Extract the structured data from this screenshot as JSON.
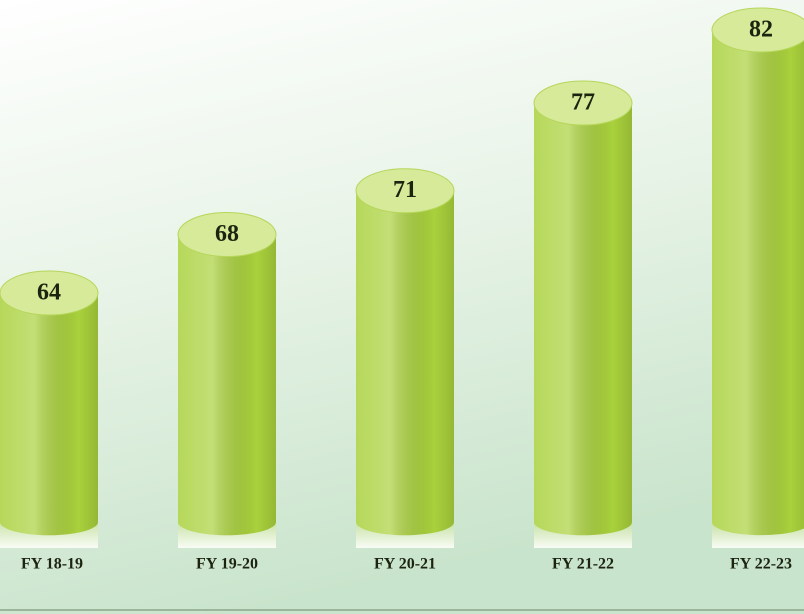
{
  "chart_data": {
    "type": "bar",
    "categories": [
      "FY 18-19",
      "FY 19-20",
      "FY 20-21",
      "FY 21-22",
      "FY 22-23"
    ],
    "values": [
      64,
      68,
      71,
      77,
      82
    ],
    "color": "#a9d13c"
  }
}
